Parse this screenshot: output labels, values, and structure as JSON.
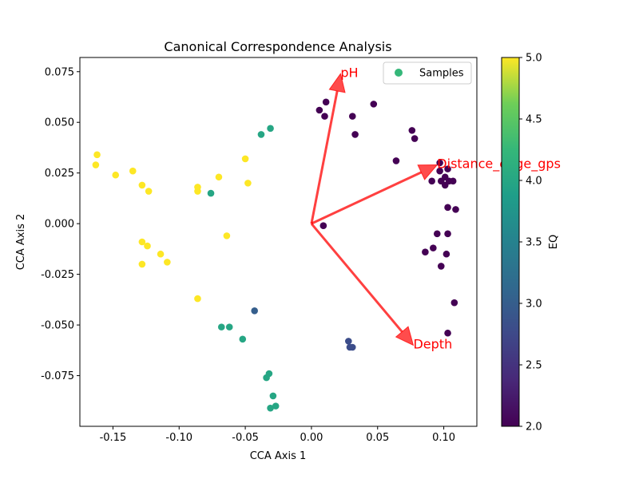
{
  "chart_data": {
    "type": "scatter",
    "title": "Canonical Correspondence Analysis",
    "xlabel": "CCA Axis 1",
    "ylabel": "CCA Axis 2",
    "xlim": [
      -0.175,
      0.125
    ],
    "ylim": [
      -0.1,
      0.082
    ],
    "xticks": [
      -0.15,
      -0.1,
      -0.05,
      0.0,
      0.05,
      0.1
    ],
    "xtick_labels": [
      "-0.15",
      "-0.10",
      "-0.05",
      "0.00",
      "0.05",
      "0.10"
    ],
    "yticks": [
      -0.075,
      -0.05,
      -0.025,
      0.0,
      0.025,
      0.05,
      0.075
    ],
    "ytick_labels": [
      "-0.075",
      "-0.050",
      "-0.025",
      "0.000",
      "0.025",
      "0.050",
      "0.075"
    ],
    "grid": false,
    "legend": {
      "position": "top-right",
      "entries": [
        "Samples"
      ],
      "marker_color": "#35b779"
    },
    "colorbar": {
      "label": "EQ",
      "range": [
        2.0,
        5.0
      ],
      "ticks": [
        2.0,
        2.5,
        3.0,
        3.5,
        4.0,
        4.5,
        5.0
      ],
      "tick_labels": [
        "2.0",
        "2.5",
        "3.0",
        "3.5",
        "4.0",
        "4.5",
        "5.0"
      ],
      "colormap": "viridis"
    },
    "series": [
      {
        "name": "Samples",
        "points": [
          {
            "x": -0.162,
            "y": 0.034,
            "eq": 5
          },
          {
            "x": -0.163,
            "y": 0.029,
            "eq": 5
          },
          {
            "x": -0.148,
            "y": 0.024,
            "eq": 5
          },
          {
            "x": -0.135,
            "y": 0.026,
            "eq": 5
          },
          {
            "x": -0.128,
            "y": 0.019,
            "eq": 5
          },
          {
            "x": -0.123,
            "y": 0.016,
            "eq": 5
          },
          {
            "x": -0.086,
            "y": 0.018,
            "eq": 5
          },
          {
            "x": -0.086,
            "y": 0.016,
            "eq": 5
          },
          {
            "x": -0.07,
            "y": 0.023,
            "eq": 5
          },
          {
            "x": -0.05,
            "y": 0.032,
            "eq": 5
          },
          {
            "x": -0.048,
            "y": 0.02,
            "eq": 5
          },
          {
            "x": -0.064,
            "y": -0.006,
            "eq": 5
          },
          {
            "x": -0.128,
            "y": -0.009,
            "eq": 5
          },
          {
            "x": -0.124,
            "y": -0.011,
            "eq": 5
          },
          {
            "x": -0.114,
            "y": -0.015,
            "eq": 5
          },
          {
            "x": -0.109,
            "y": -0.019,
            "eq": 5
          },
          {
            "x": -0.128,
            "y": -0.02,
            "eq": 5
          },
          {
            "x": -0.086,
            "y": -0.037,
            "eq": 5
          },
          {
            "x": -0.038,
            "y": 0.044,
            "eq": 4
          },
          {
            "x": -0.031,
            "y": 0.047,
            "eq": 4
          },
          {
            "x": -0.076,
            "y": 0.015,
            "eq": 4
          },
          {
            "x": -0.068,
            "y": -0.051,
            "eq": 4
          },
          {
            "x": -0.062,
            "y": -0.051,
            "eq": 4
          },
          {
            "x": -0.052,
            "y": -0.057,
            "eq": 4
          },
          {
            "x": -0.034,
            "y": -0.076,
            "eq": 4
          },
          {
            "x": -0.032,
            "y": -0.074,
            "eq": 4
          },
          {
            "x": -0.029,
            "y": -0.085,
            "eq": 4
          },
          {
            "x": -0.031,
            "y": -0.091,
            "eq": 4
          },
          {
            "x": -0.027,
            "y": -0.09,
            "eq": 4
          },
          {
            "x": -0.043,
            "y": -0.043,
            "eq": 3
          },
          {
            "x": 0.028,
            "y": -0.058,
            "eq": 2.8
          },
          {
            "x": 0.029,
            "y": -0.061,
            "eq": 2.8
          },
          {
            "x": 0.031,
            "y": -0.061,
            "eq": 2.8
          },
          {
            "x": 0.006,
            "y": 0.056,
            "eq": 2
          },
          {
            "x": 0.011,
            "y": 0.06,
            "eq": 2
          },
          {
            "x": 0.01,
            "y": 0.053,
            "eq": 2
          },
          {
            "x": 0.031,
            "y": 0.053,
            "eq": 2
          },
          {
            "x": 0.033,
            "y": 0.044,
            "eq": 2
          },
          {
            "x": 0.047,
            "y": 0.059,
            "eq": 2
          },
          {
            "x": 0.064,
            "y": 0.031,
            "eq": 2
          },
          {
            "x": 0.076,
            "y": 0.046,
            "eq": 2
          },
          {
            "x": 0.078,
            "y": 0.042,
            "eq": 2
          },
          {
            "x": 0.009,
            "y": -0.001,
            "eq": 2
          },
          {
            "x": 0.097,
            "y": 0.03,
            "eq": 2
          },
          {
            "x": 0.103,
            "y": 0.027,
            "eq": 2
          },
          {
            "x": 0.097,
            "y": 0.026,
            "eq": 2
          },
          {
            "x": 0.101,
            "y": 0.023,
            "eq": 2
          },
          {
            "x": 0.091,
            "y": 0.021,
            "eq": 2
          },
          {
            "x": 0.098,
            "y": 0.021,
            "eq": 2
          },
          {
            "x": 0.101,
            "y": 0.019,
            "eq": 2
          },
          {
            "x": 0.104,
            "y": 0.021,
            "eq": 2
          },
          {
            "x": 0.107,
            "y": 0.021,
            "eq": 2
          },
          {
            "x": 0.103,
            "y": 0.008,
            "eq": 2
          },
          {
            "x": 0.109,
            "y": 0.007,
            "eq": 2
          },
          {
            "x": 0.095,
            "y": -0.005,
            "eq": 2
          },
          {
            "x": 0.103,
            "y": -0.005,
            "eq": 2
          },
          {
            "x": 0.092,
            "y": -0.012,
            "eq": 2
          },
          {
            "x": 0.086,
            "y": -0.014,
            "eq": 2
          },
          {
            "x": 0.102,
            "y": -0.015,
            "eq": 2
          },
          {
            "x": 0.098,
            "y": -0.021,
            "eq": 2
          },
          {
            "x": 0.108,
            "y": -0.039,
            "eq": 2
          },
          {
            "x": 0.103,
            "y": -0.054,
            "eq": 2
          }
        ]
      }
    ],
    "arrows": [
      {
        "label": "pH",
        "x": 0.022,
        "y": 0.074
      },
      {
        "label": "Distance_edge_gps",
        "x": 0.095,
        "y": 0.029
      },
      {
        "label": "Depth",
        "x": 0.077,
        "y": -0.06
      }
    ],
    "arrow_color": "#ff0000"
  }
}
